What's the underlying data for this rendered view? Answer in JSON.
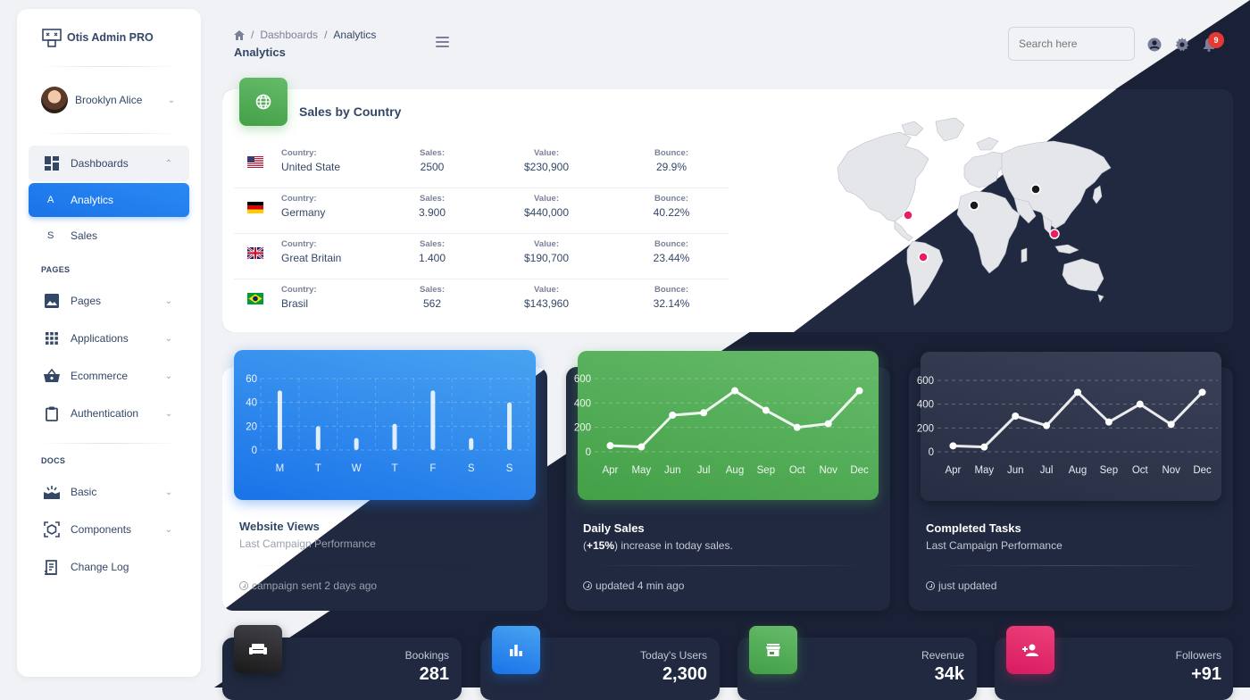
{
  "brand": {
    "name": "Otis Admin PRO"
  },
  "user": {
    "name": "Brooklyn Alice"
  },
  "sidebar": {
    "dashboards": {
      "label": "Dashboards",
      "children": [
        {
          "letter": "A",
          "label": "Analytics"
        },
        {
          "letter": "S",
          "label": "Sales"
        }
      ]
    },
    "pages_title": "PAGES",
    "pages_items": [
      {
        "label": "Pages"
      },
      {
        "label": "Applications"
      },
      {
        "label": "Ecommerce"
      },
      {
        "label": "Authentication"
      }
    ],
    "docs_title": "DOCS",
    "docs_items": [
      {
        "label": "Basic"
      },
      {
        "label": "Components"
      },
      {
        "label": "Change Log"
      }
    ]
  },
  "header": {
    "breadcrumb": [
      "Dashboards",
      "Analytics"
    ],
    "title": "Analytics",
    "search_placeholder": "Search here",
    "notifications": "9"
  },
  "sales_by_country": {
    "title": "Sales by Country",
    "headers": {
      "country": "Country:",
      "sales": "Sales:",
      "value": "Value:",
      "bounce": "Bounce:"
    },
    "rows": [
      {
        "flag": "us",
        "country": "United State",
        "sales": "2500",
        "value": "$230,900",
        "bounce": "29.9%"
      },
      {
        "flag": "de",
        "country": "Germany",
        "sales": "3.900",
        "value": "$440,000",
        "bounce": "40.22%"
      },
      {
        "flag": "gb",
        "country": "Great Britain",
        "sales": "1.400",
        "value": "$190,700",
        "bounce": "23.44%"
      },
      {
        "flag": "br",
        "country": "Brasil",
        "sales": "562",
        "value": "$143,960",
        "bounce": "32.14%"
      }
    ]
  },
  "cards": {
    "website_views": {
      "title": "Website Views",
      "subtitle": "Last Campaign Performance",
      "footer": "campaign sent 2 days ago"
    },
    "daily_sales": {
      "title": "Daily Sales",
      "subtitle_bold": "+15%",
      "subtitle_rest": "increase in today sales.",
      "footer": "updated 4 min ago"
    },
    "completed_tasks": {
      "title": "Completed Tasks",
      "subtitle": "Last Campaign Performance",
      "footer": "just updated"
    }
  },
  "stats": [
    {
      "label": "Bookings",
      "value": "281",
      "icon": "sofa-icon"
    },
    {
      "label": "Today's Users",
      "value": "2,300",
      "icon": "bar-chart-icon"
    },
    {
      "label": "Revenue",
      "value": "34k",
      "icon": "store-icon"
    },
    {
      "label": "Followers",
      "value": "+91",
      "icon": "person-add-icon"
    }
  ],
  "colors": {
    "primary": "#1a73e8",
    "success": "#4caf50",
    "dark": "#202940",
    "pink": "#e91e63",
    "danger": "#e53935"
  },
  "chart_data": [
    {
      "type": "bar",
      "title": "Website Views",
      "categories": [
        "M",
        "T",
        "W",
        "T",
        "F",
        "S",
        "S"
      ],
      "values": [
        50,
        20,
        10,
        22,
        50,
        10,
        40
      ],
      "yticks": [
        0,
        20,
        40,
        60
      ],
      "ylim": [
        0,
        60
      ],
      "grid": true
    },
    {
      "type": "line",
      "title": "Daily Sales",
      "categories": [
        "Apr",
        "May",
        "Jun",
        "Jul",
        "Aug",
        "Sep",
        "Oct",
        "Nov",
        "Dec"
      ],
      "values": [
        50,
        40,
        300,
        320,
        500,
        340,
        200,
        230,
        500
      ],
      "yticks": [
        0,
        200,
        400,
        600
      ],
      "ylim": [
        0,
        600
      ],
      "grid": true
    },
    {
      "type": "line",
      "title": "Completed Tasks",
      "categories": [
        "Apr",
        "May",
        "Jun",
        "Jul",
        "Aug",
        "Sep",
        "Oct",
        "Nov",
        "Dec"
      ],
      "values": [
        50,
        40,
        300,
        220,
        500,
        250,
        400,
        230,
        500
      ],
      "yticks": [
        0,
        200,
        400,
        600
      ],
      "ylim": [
        0,
        600
      ],
      "grid": true
    }
  ]
}
